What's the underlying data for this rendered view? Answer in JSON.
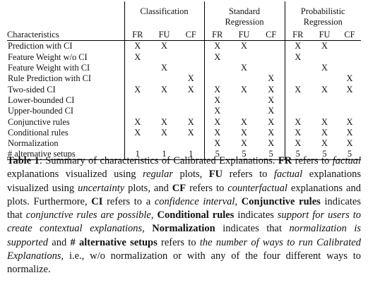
{
  "table": {
    "groups": [
      {
        "lines": [
          "Classification"
        ]
      },
      {
        "lines": [
          "Standard",
          "Regression"
        ]
      },
      {
        "lines": [
          "Probabilistic",
          "Regression"
        ]
      }
    ],
    "columns": [
      "Characteristics",
      "FR",
      "FU",
      "CF",
      "FR",
      "FU",
      "CF",
      "FR",
      "FU",
      "CF"
    ],
    "rows": [
      {
        "label": "Prediction with CI",
        "cells": [
          "X",
          "X",
          "",
          "X",
          "X",
          "",
          "X",
          "X",
          ""
        ]
      },
      {
        "label": "Feature Weight w/o CI",
        "cells": [
          "X",
          "",
          "",
          "X",
          "",
          "",
          "X",
          "",
          ""
        ]
      },
      {
        "label": "Feature Weight with CI",
        "cells": [
          "",
          "X",
          "",
          "",
          "X",
          "",
          "",
          "X",
          ""
        ]
      },
      {
        "label": "Rule Prediction with CI",
        "cells": [
          "",
          "",
          "X",
          "",
          "",
          "X",
          "",
          "",
          "X"
        ]
      },
      {
        "label": "Two-sided CI",
        "cells": [
          "X",
          "X",
          "X",
          "X",
          "X",
          "X",
          "X",
          "X",
          "X"
        ]
      },
      {
        "label": "Lower-bounded CI",
        "cells": [
          "",
          "",
          "",
          "X",
          "",
          "X",
          "",
          "",
          ""
        ]
      },
      {
        "label": "Upper-bounded CI",
        "cells": [
          "",
          "",
          "",
          "X",
          "",
          "X",
          "",
          "",
          ""
        ]
      },
      {
        "label": "Conjunctive rules",
        "cells": [
          "X",
          "X",
          "X",
          "X",
          "X",
          "X",
          "X",
          "X",
          "X"
        ]
      },
      {
        "label": "Conditional rules",
        "cells": [
          "X",
          "X",
          "X",
          "X",
          "X",
          "X",
          "X",
          "X",
          "X"
        ]
      },
      {
        "label": "Normalization",
        "cells": [
          "",
          "",
          "",
          "X",
          "X",
          "X",
          "X",
          "X",
          "X"
        ]
      },
      {
        "label": "# alternative setups",
        "cells": [
          "1",
          "1",
          "1",
          "5",
          "5",
          "5",
          "5",
          "5",
          "5"
        ]
      }
    ]
  },
  "caption": {
    "label": "Table 1",
    "segments": [
      {
        "t": "Table 1",
        "s": "b"
      },
      {
        "t": ": Summary of characteristics of Calibrated Explanations. ",
        "s": ""
      },
      {
        "t": "FR",
        "s": "b"
      },
      {
        "t": " refers to ",
        "s": ""
      },
      {
        "t": "factual",
        "s": "i"
      },
      {
        "t": " explanations visualized using ",
        "s": ""
      },
      {
        "t": "regular",
        "s": "i"
      },
      {
        "t": " plots, ",
        "s": ""
      },
      {
        "t": "FU",
        "s": "b"
      },
      {
        "t": " refers to ",
        "s": ""
      },
      {
        "t": "factual",
        "s": "i"
      },
      {
        "t": " explanations visualized using ",
        "s": ""
      },
      {
        "t": "uncertainty",
        "s": "i"
      },
      {
        "t": " plots, and ",
        "s": ""
      },
      {
        "t": "CF",
        "s": "b"
      },
      {
        "t": " refers to ",
        "s": ""
      },
      {
        "t": "counterfactual",
        "s": "i"
      },
      {
        "t": " explanations and plots. Furthermore, ",
        "s": ""
      },
      {
        "t": "CI",
        "s": "b"
      },
      {
        "t": " refers to a ",
        "s": ""
      },
      {
        "t": "confidence interval",
        "s": "i"
      },
      {
        "t": ", ",
        "s": ""
      },
      {
        "t": "Conjunctive rules",
        "s": "b"
      },
      {
        "t": " indicates that ",
        "s": ""
      },
      {
        "t": "conjunctive rules are possible",
        "s": "i"
      },
      {
        "t": ", ",
        "s": ""
      },
      {
        "t": "Conditional rules",
        "s": "b"
      },
      {
        "t": " indicates ",
        "s": ""
      },
      {
        "t": "support for users to create contextual explanations",
        "s": "i"
      },
      {
        "t": ", ",
        "s": ""
      },
      {
        "t": "Normalization",
        "s": "b"
      },
      {
        "t": " indicates that ",
        "s": ""
      },
      {
        "t": "normalization is supported",
        "s": "i"
      },
      {
        "t": " and ",
        "s": ""
      },
      {
        "t": "# alternative setups",
        "s": "b"
      },
      {
        "t": " refers to ",
        "s": ""
      },
      {
        "t": "the number of ways to run Calibrated Explanations",
        "s": "i"
      },
      {
        "t": ", i.e., w/o normalization or with any of the four different ways to normalize.",
        "s": ""
      }
    ]
  }
}
